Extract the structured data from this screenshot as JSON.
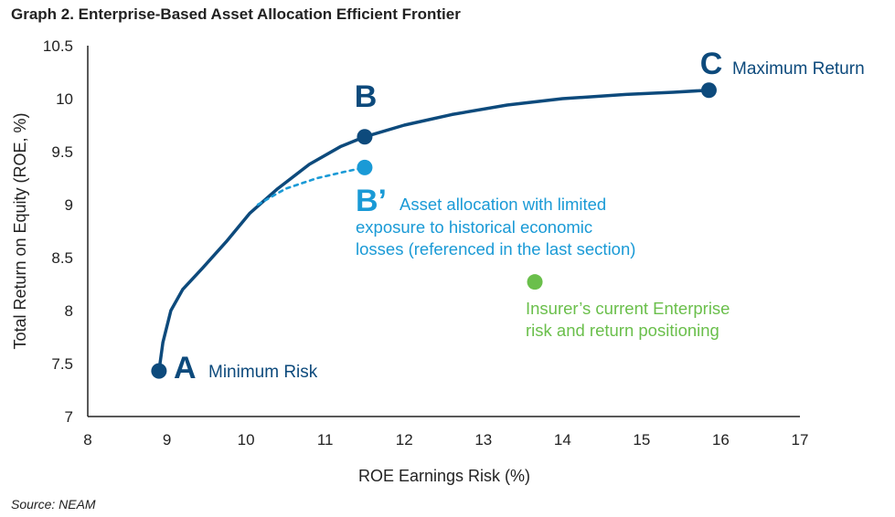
{
  "title": "Graph 2. Enterprise-Based Asset Allocation Efficient Frontier",
  "source": "Source: NEAM",
  "colors": {
    "frontier": "#0d4a7c",
    "limited": "#1a9ad6",
    "current": "#6abf4b",
    "axis": "#222222"
  },
  "chart_data": {
    "type": "line",
    "xlabel": "ROE Earnings Risk (%)",
    "ylabel": "Total Return on Equity (ROE, %)",
    "xlim": [
      8,
      17
    ],
    "ylim": [
      7,
      10.5
    ],
    "xticks": [
      "8",
      "9",
      "10",
      "11",
      "12",
      "13",
      "14",
      "15",
      "16",
      "17"
    ],
    "yticks": [
      "7",
      "7.5",
      "8",
      "8.5",
      "9",
      "9.5",
      "10",
      "10.5"
    ],
    "grid": false,
    "series": [
      {
        "style": "solid",
        "color": "#0d4a7c",
        "x": [
          8.9,
          8.95,
          9.05,
          9.2,
          9.45,
          9.75,
          10.05,
          10.4,
          10.8,
          11.2,
          11.5,
          12.0,
          12.6,
          13.3,
          14.0,
          14.8,
          15.4,
          15.85
        ],
        "y": [
          7.43,
          7.7,
          8.0,
          8.2,
          8.4,
          8.65,
          8.92,
          9.15,
          9.38,
          9.55,
          9.64,
          9.75,
          9.85,
          9.94,
          10.0,
          10.04,
          10.06,
          10.08
        ]
      },
      {
        "style": "dotted",
        "color": "#1a9ad6",
        "x": [
          10.15,
          10.5,
          10.9,
          11.25,
          11.5
        ],
        "y": [
          9.0,
          9.15,
          9.25,
          9.31,
          9.35
        ]
      }
    ],
    "points": [
      {
        "id": "A",
        "letter": "A",
        "label": "Minimum Risk",
        "x": 8.9,
        "y": 7.43,
        "color": "#0d4a7c"
      },
      {
        "id": "B",
        "letter": "B",
        "label": "",
        "x": 11.5,
        "y": 9.64,
        "color": "#0d4a7c"
      },
      {
        "id": "C",
        "letter": "C",
        "label": "Maximum Return",
        "x": 15.85,
        "y": 10.08,
        "color": "#0d4a7c"
      },
      {
        "id": "Bp",
        "letter": "B’",
        "label_lines": [
          "Asset allocation with limited",
          "exposure to historical economic",
          "losses (referenced in the last section)"
        ],
        "x": 11.5,
        "y": 9.35,
        "color": "#1a9ad6"
      },
      {
        "id": "current",
        "letter": "",
        "label_lines": [
          "Insurer’s current Enterprise",
          "risk and return positioning"
        ],
        "x": 13.65,
        "y": 8.27,
        "color": "#6abf4b"
      }
    ]
  }
}
